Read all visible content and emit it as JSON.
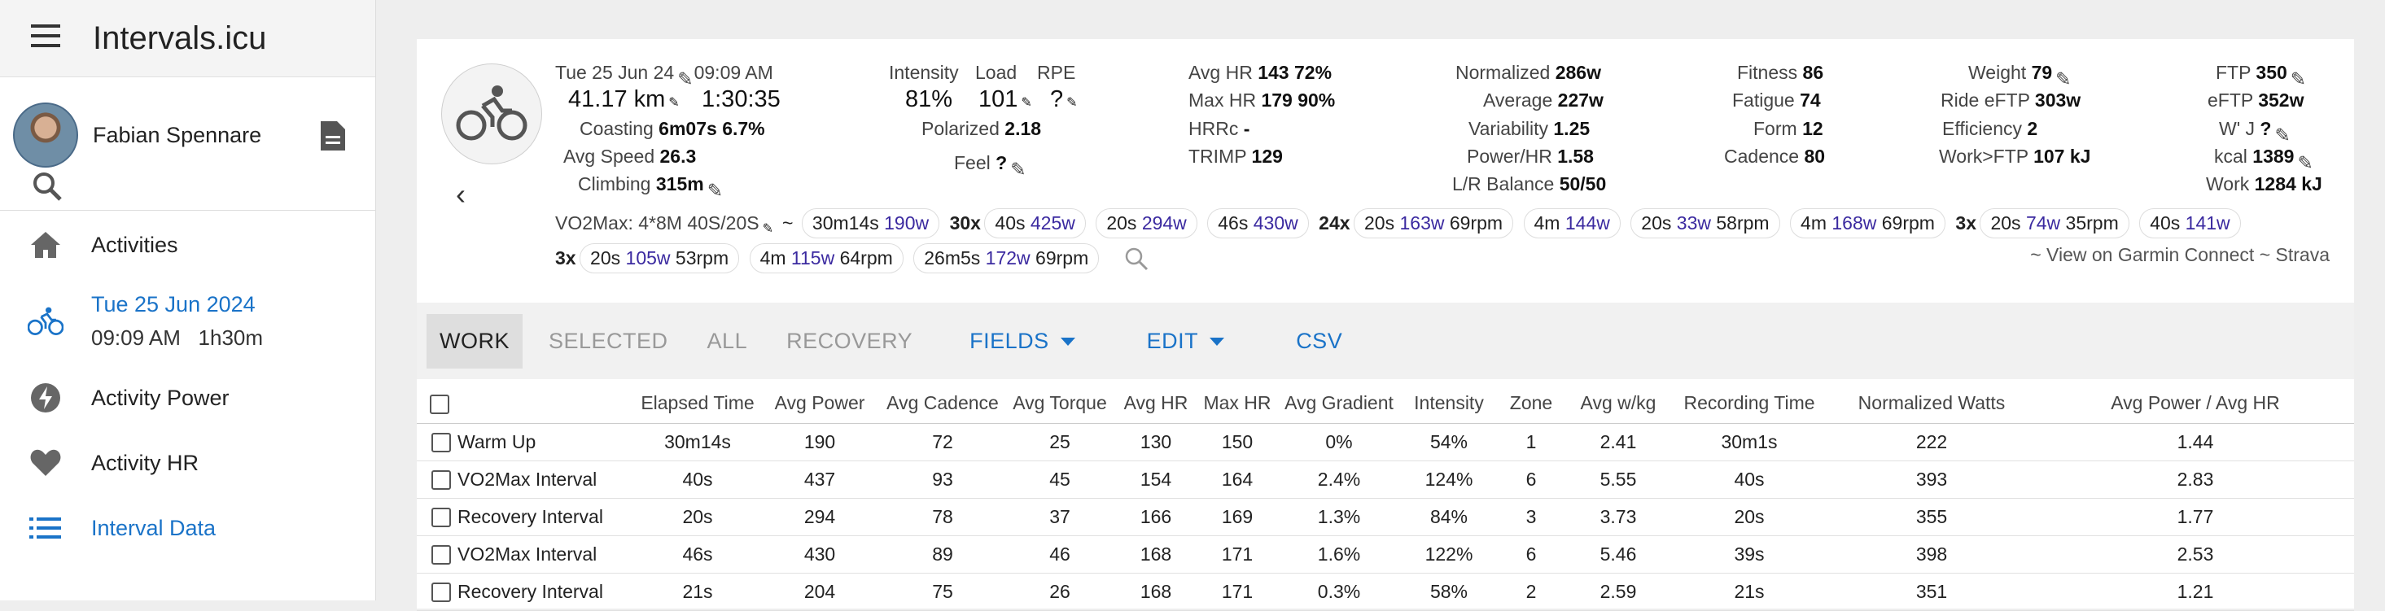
{
  "app": {
    "title": "Intervals.icu"
  },
  "user": {
    "name": "Fabian Spennare"
  },
  "nav": {
    "activities": "Activities",
    "date_line1": "Tue 25 Jun 2024",
    "date_line2": "09:09 AM   1h30m",
    "power": "Activity Power",
    "hr": "Activity HR",
    "interval": "Interval Data"
  },
  "summary": {
    "date": "Tue 25 Jun 24",
    "time": "09:09 AM",
    "distance": "41.17 km",
    "duration": "1:30:35",
    "coasting_label": "Coasting",
    "coasting": "6m07s",
    "coasting_pct": "6.7%",
    "avg_speed_label": "Avg Speed",
    "avg_speed": "26.3",
    "climbing_label": "Climbing",
    "climbing": "315m",
    "intensity_label": "Intensity",
    "intensity": "81%",
    "load_label": "Load",
    "load": "101",
    "rpe_label": "RPE",
    "rpe": "?",
    "polarized_label": "Polarized",
    "polarized": "2.18",
    "feel_label": "Feel",
    "feel": "?",
    "avg_hr_label": "Avg HR",
    "avg_hr": "143",
    "avg_hr_pct": "72%",
    "max_hr_label": "Max HR",
    "max_hr": "179",
    "max_hr_pct": "90%",
    "hrrc_label": "HRRc",
    "hrrc": "-",
    "trimp_label": "TRIMP",
    "trimp": "129",
    "normalized_label": "Normalized",
    "normalized": "286w",
    "average_label": "Average",
    "average": "227w",
    "variability_label": "Variability",
    "variability": "1.25",
    "powerhr_label": "Power/HR",
    "powerhr": "1.58",
    "lr_label": "L/R Balance",
    "lr": "50/50",
    "fitness_label": "Fitness",
    "fitness": "86",
    "fatigue_label": "Fatigue",
    "fatigue": "74",
    "form_label": "Form",
    "form": "12",
    "cadence_label": "Cadence",
    "cadence": "80",
    "weight_label": "Weight",
    "weight": "79",
    "ride_eftp_label": "Ride eFTP",
    "ride_eftp": "303w",
    "efficiency_label": "Efficiency",
    "efficiency": "2",
    "work_ftp_label": "Work>FTP",
    "work_ftp": "107 kJ",
    "ftp_label": "FTP",
    "ftp": "350",
    "eftp_label": "eFTP",
    "eftp": "352w",
    "wj_label": "W' J",
    "wj": "?",
    "kcal_label": "kcal",
    "kcal": "1389",
    "work_label": "Work",
    "work": "1284 kJ"
  },
  "chips": {
    "workout": "VO2Max: 4*8M 40S/20S",
    "tilde": "~",
    "c1_t": "30m14s",
    "c1_w": "190w",
    "c2_x": "30x",
    "c2_t": "40s",
    "c2_w": "425w",
    "c3_t": "20s",
    "c3_w": "294w",
    "c4_t": "46s",
    "c4_w": "430w",
    "c5_x": "24x",
    "c5_t": "20s",
    "c5_w": "163w",
    "c5_r": "69rpm",
    "c6_t": "4m",
    "c6_w": "144w",
    "c7_t": "20s",
    "c7_w": "33w",
    "c7_r": "58rpm",
    "c8_t": "4m",
    "c8_w": "168w",
    "c8_r": "69rpm",
    "c9_x": "3x",
    "c9_t": "20s",
    "c9_w": "74w",
    "c9_r": "35rpm",
    "c10_t": "40s",
    "c10_w": "141w",
    "c11_x": "3x",
    "c11_t": "20s",
    "c11_w": "105w",
    "c11_r": "53rpm",
    "c12_t": "4m",
    "c12_w": "115w",
    "c12_r": "64rpm",
    "c13_t": "26m5s",
    "c13_w": "172w",
    "c13_r": "69rpm",
    "links": "~ View on Garmin Connect ~ Strava"
  },
  "tabs": {
    "work": "WORK",
    "selected": "SELECTED",
    "all": "ALL",
    "recovery": "RECOVERY",
    "fields": "FIELDS",
    "edit": "EDIT",
    "csv": "CSV"
  },
  "table": {
    "headers": [
      "Elapsed Time",
      "Avg Power",
      "Avg Cadence",
      "Avg Torque",
      "Avg HR",
      "Max HR",
      "Avg Gradient",
      "Intensity",
      "Zone",
      "Avg w/kg",
      "Recording Time",
      "Normalized Watts",
      "Avg Power / Avg HR"
    ],
    "rows": [
      {
        "name": "Warm Up",
        "cells": [
          "30m14s",
          "190",
          "72",
          "25",
          "130",
          "150",
          "0%",
          "54%",
          "1",
          "2.41",
          "30m1s",
          "222",
          "1.44"
        ]
      },
      {
        "name": "VO2Max Interval",
        "cells": [
          "40s",
          "437",
          "93",
          "45",
          "154",
          "164",
          "2.4%",
          "124%",
          "6",
          "5.55",
          "40s",
          "393",
          "2.83"
        ]
      },
      {
        "name": "Recovery Interval",
        "cells": [
          "20s",
          "294",
          "78",
          "37",
          "166",
          "169",
          "1.3%",
          "84%",
          "3",
          "3.73",
          "20s",
          "355",
          "1.77"
        ]
      },
      {
        "name": "VO2Max Interval",
        "cells": [
          "46s",
          "430",
          "89",
          "46",
          "168",
          "171",
          "1.6%",
          "122%",
          "6",
          "5.46",
          "39s",
          "398",
          "2.53"
        ]
      },
      {
        "name": "Recovery Interval",
        "cells": [
          "21s",
          "204",
          "75",
          "26",
          "168",
          "171",
          "0.3%",
          "58%",
          "2",
          "2.59",
          "21s",
          "351",
          "1.21"
        ]
      }
    ]
  }
}
